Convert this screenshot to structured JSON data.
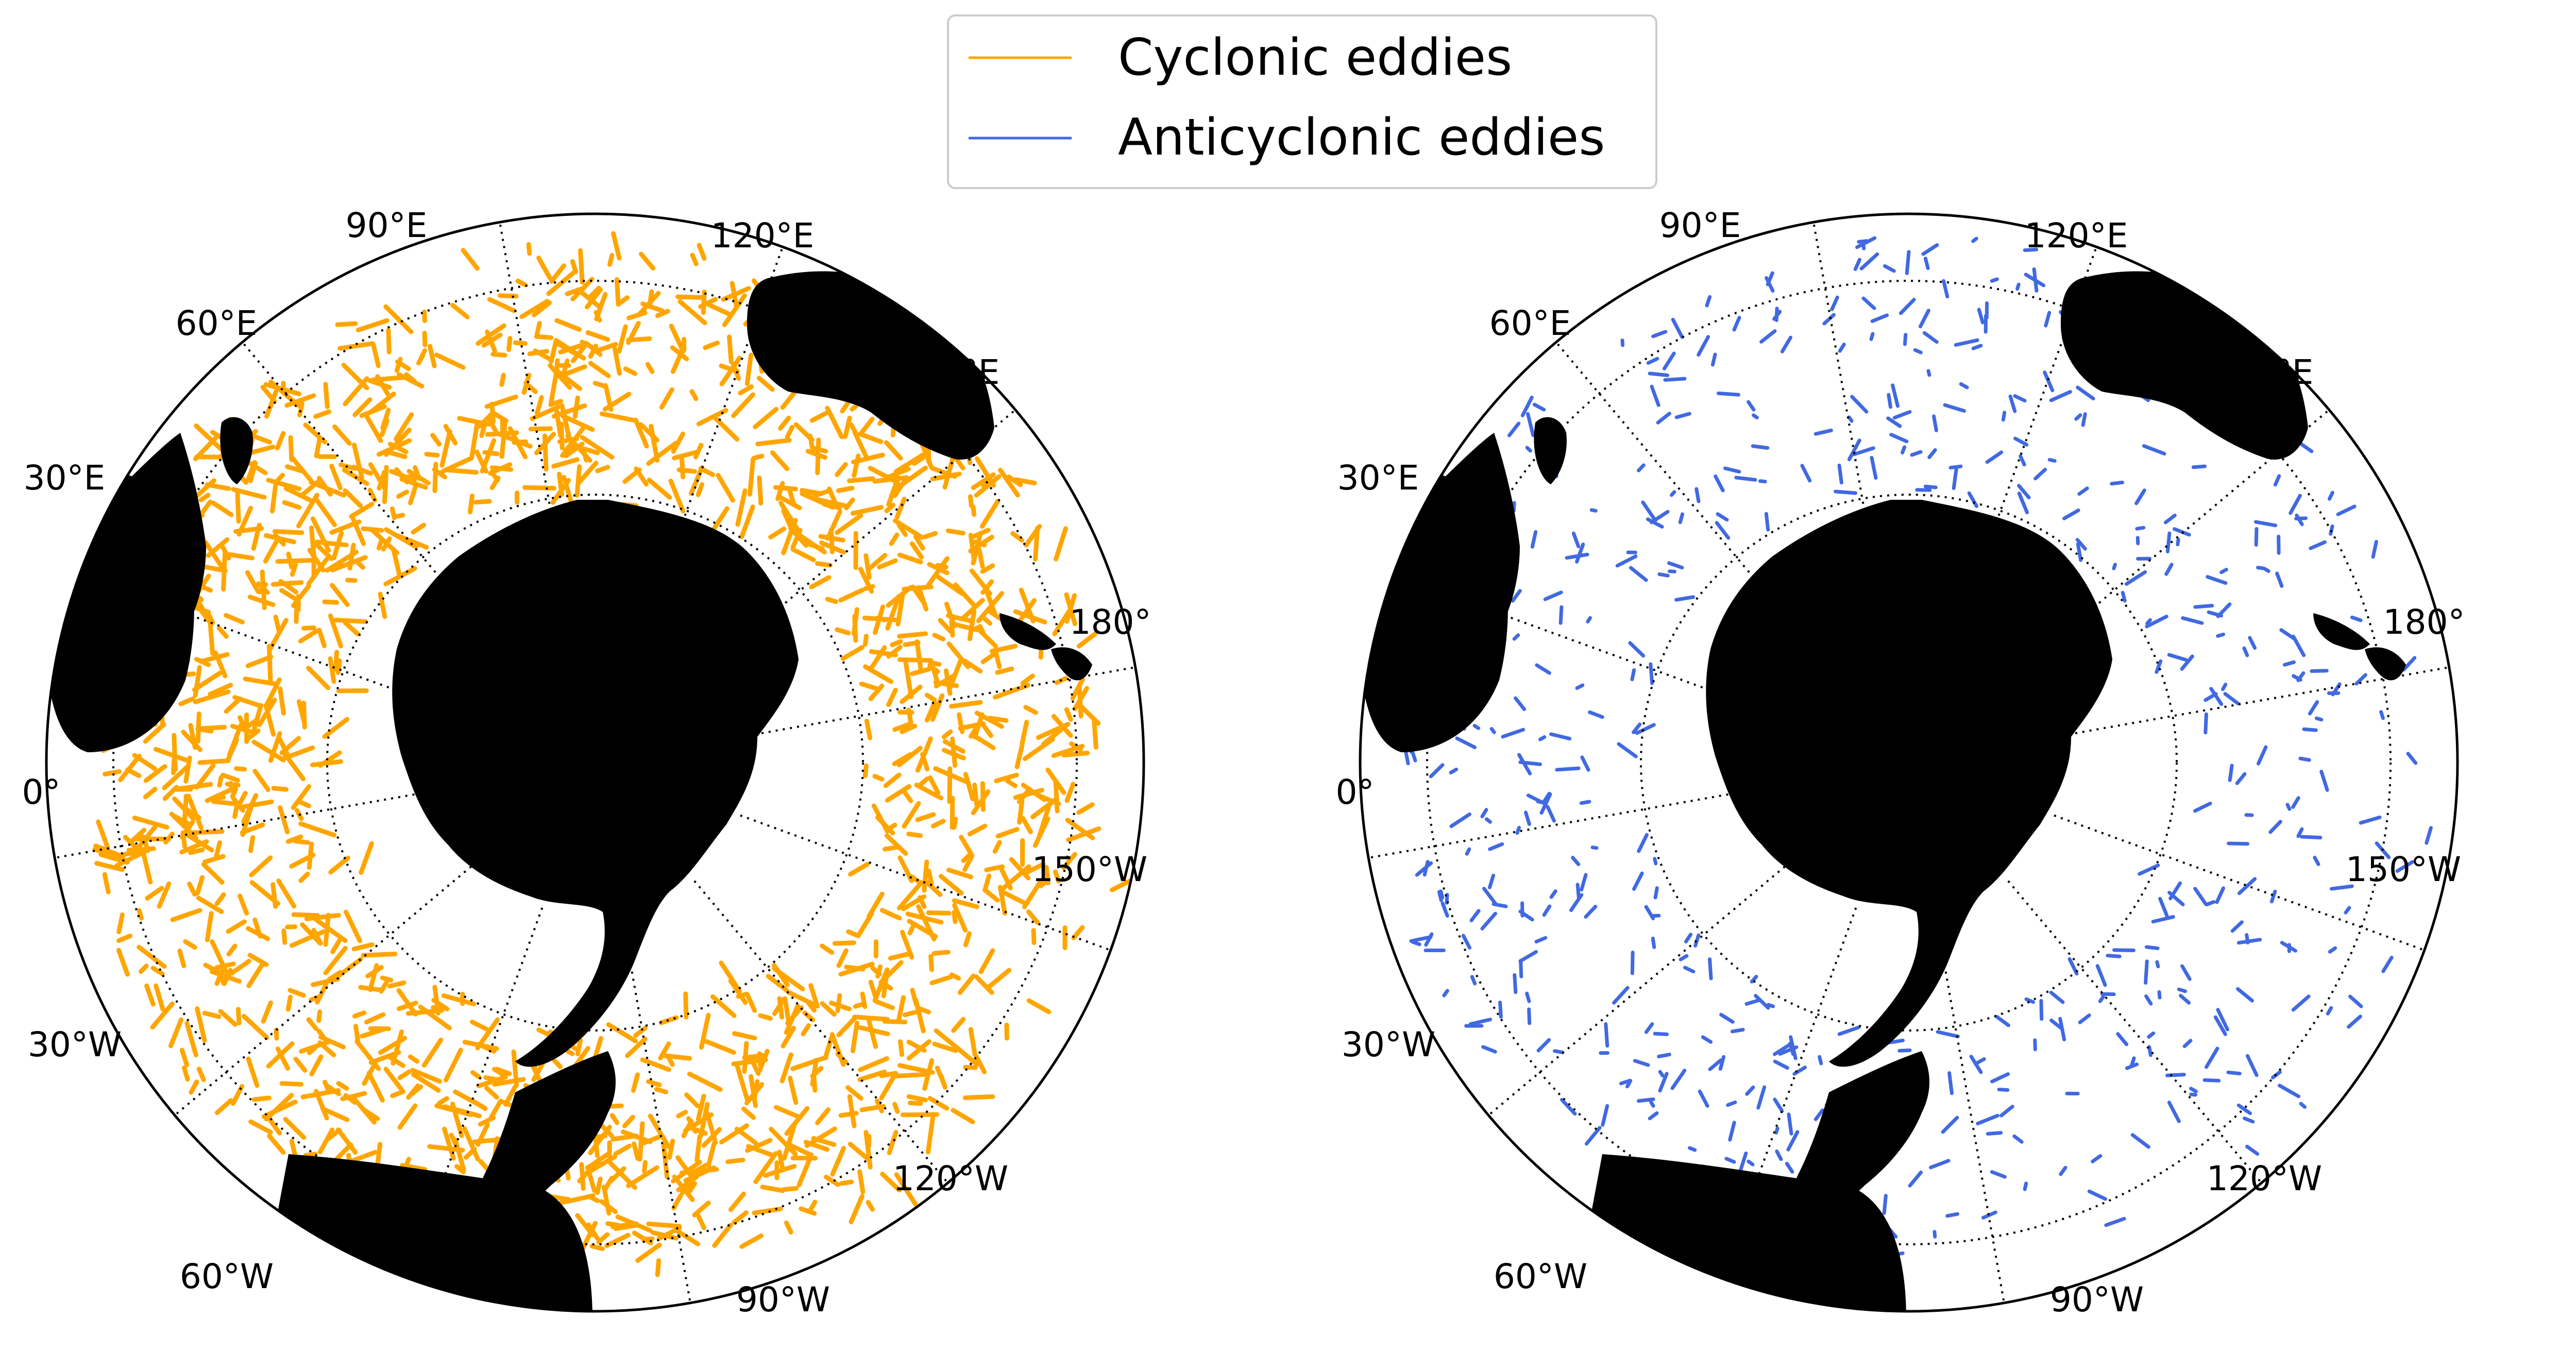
{
  "legend": {
    "entries": [
      {
        "label": "Cyclonic eddies",
        "color": "#FFA500"
      },
      {
        "label": "Anticyclonic eddies",
        "color": "#4169E1"
      }
    ]
  },
  "panels": [
    {
      "name": "cyclonic",
      "color": "#FFA500",
      "lon_labels": [
        "90°E",
        "120°E",
        "60°E",
        "150°E",
        "30°E",
        "180°",
        "0°",
        "150°W",
        "30°W",
        "120°W",
        "60°W",
        "90°W"
      ]
    },
    {
      "name": "anticyclonic",
      "color": "#4169E1",
      "lon_labels": [
        "90°E",
        "120°E",
        "60°E",
        "150°E",
        "30°E",
        "180°",
        "0°",
        "150°W",
        "30°W",
        "120°W",
        "60°W",
        "90°W"
      ]
    }
  ],
  "colors": {
    "land": "#000000",
    "graticule": "#000000",
    "background": "#ffffff"
  }
}
